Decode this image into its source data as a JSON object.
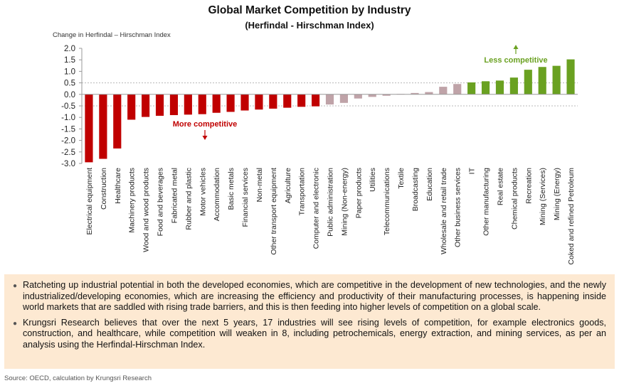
{
  "chart_data": {
    "type": "bar",
    "title": "Global Market Competition by Industry",
    "subtitle": "(Herfindal - Hirschman Index)",
    "ylabel": "Change in Herfindal – Hirschman Index",
    "xlabel": "",
    "ylim": [
      -3.0,
      2.0
    ],
    "yticks": [
      "2.0",
      "1.5",
      "1.0",
      "0.5",
      "0.0",
      "-0.5",
      "-1.0",
      "-1.5",
      "-2.0",
      "-2.5",
      "-3.0"
    ],
    "grid": false,
    "reference_lines": [
      0.5,
      -0.5
    ],
    "categories": [
      "Electrical equipment",
      "Construction",
      "Healthcare",
      "Machinery products",
      "Wood and wood products",
      "Food and beverages",
      "Fabricated metal",
      "Rubber and plastic",
      "Motor vehicles",
      "Accommodation",
      "Basic metals",
      "Financial services",
      "Non-metal",
      "Other transport equipment",
      "Agriculture",
      "Transportation",
      "Computer and electronic",
      "Public administration",
      "Mining (Non-energy)",
      "Paper products",
      "Utilities",
      "Telecommunications",
      "Textile",
      "Broadcasting",
      "Education",
      "Wholesale and retail trade",
      "Other business services",
      "IT",
      "Other manufacturing",
      "Real estate",
      "Chemical products",
      "Recreation",
      "Mining (Services)",
      "Mining (Energy)",
      "Coked and refined Petroleum"
    ],
    "values": [
      -2.95,
      -2.8,
      -2.35,
      -1.1,
      -0.98,
      -0.93,
      -0.9,
      -0.88,
      -0.86,
      -0.8,
      -0.76,
      -0.7,
      -0.66,
      -0.62,
      -0.58,
      -0.54,
      -0.52,
      -0.44,
      -0.37,
      -0.18,
      -0.11,
      -0.06,
      0.02,
      0.06,
      0.1,
      0.33,
      0.45,
      0.52,
      0.57,
      0.6,
      0.73,
      1.07,
      1.19,
      1.24,
      1.52
    ],
    "bar_colors": {
      "more_competitive": "#c00000",
      "neutral": "#bfa3a8",
      "less_competitive": "#6aa121"
    },
    "bar_groups": [
      "more_competitive",
      "more_competitive",
      "more_competitive",
      "more_competitive",
      "more_competitive",
      "more_competitive",
      "more_competitive",
      "more_competitive",
      "more_competitive",
      "more_competitive",
      "more_competitive",
      "more_competitive",
      "more_competitive",
      "more_competitive",
      "more_competitive",
      "more_competitive",
      "more_competitive",
      "neutral",
      "neutral",
      "neutral",
      "neutral",
      "neutral",
      "neutral",
      "neutral",
      "neutral",
      "neutral",
      "neutral",
      "less_competitive",
      "less_competitive",
      "less_competitive",
      "less_competitive",
      "less_competitive",
      "less_competitive",
      "less_competitive",
      "less_competitive"
    ],
    "annotations": {
      "more": {
        "text": "More competitive",
        "color": "#c00000",
        "arrow": "down"
      },
      "less": {
        "text": "Less competitive",
        "color": "#6aa121",
        "arrow": "up"
      }
    }
  },
  "notes": [
    "Ratcheting up industrial potential in both the developed economies, which are competitive in the development of new technologies, and the newly industrialized/developing economies, which are increasing the efficiency and productivity of their manufacturing processes, is happening inside world markets that are saddled with rising trade barriers, and this is then feeding into higher levels of competition on a global scale.",
    "Krungsri Research believes that over the next 5 years, 17 industries will see rising levels of competition, for example electronics goods, construction, and healthcare, while competition will weaken in 8, including petrochemicals, energy extraction, and mining services, as per an analysis using the Herfindal-Hirschman Index."
  ],
  "source": "Source: OECD, calculation by Krungsri Research"
}
